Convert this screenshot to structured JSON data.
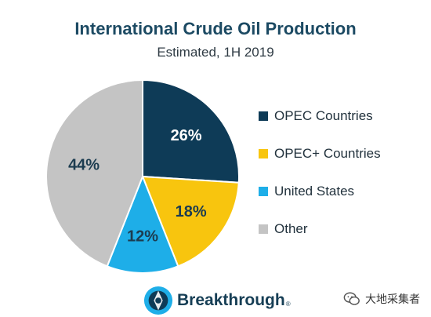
{
  "chart_data": {
    "type": "pie",
    "title": "International Crude Oil Production",
    "subtitle": "Estimated, 1H 2019",
    "legend_position": "right",
    "start_angle_deg": 0,
    "direction": "clockwise",
    "slices": [
      {
        "label": "OPEC Countries",
        "value": 26,
        "display": "26%",
        "color": "#0e3b57",
        "label_color": "#ffffff"
      },
      {
        "label": "OPEC+ Countries",
        "value": 18,
        "display": "18%",
        "color": "#f8c50e",
        "label_color": "#1c3c50"
      },
      {
        "label": "United States",
        "value": 12,
        "display": "12%",
        "color": "#1eaee8",
        "label_color": "#1c3c50"
      },
      {
        "label": "Other",
        "value": 44,
        "display": "44%",
        "color": "#c4c4c4",
        "label_color": "#1c3c50"
      }
    ]
  },
  "logo": {
    "text": "Breakthrough",
    "tm": "®"
  },
  "watermark": {
    "text": "大地采集者"
  }
}
